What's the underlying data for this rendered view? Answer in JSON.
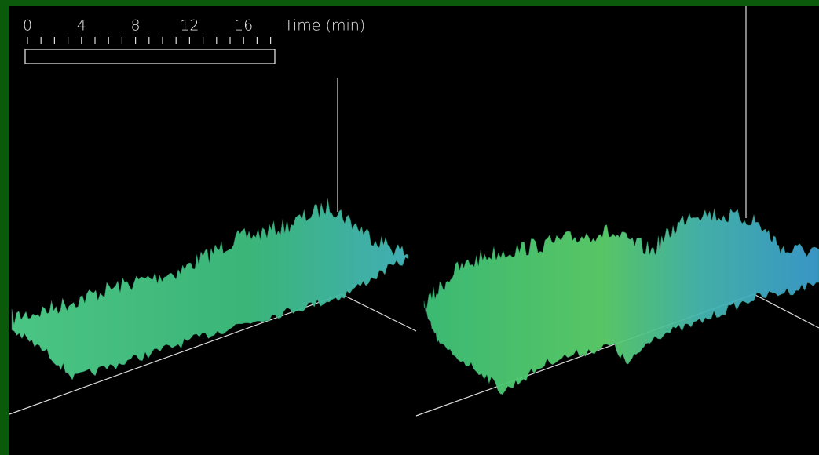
{
  "scale": {
    "ticks": [
      0,
      4,
      8,
      12,
      16
    ],
    "label": "Time (min)"
  }
}
